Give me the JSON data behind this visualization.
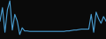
{
  "line_color": "#4a9fd4",
  "background_color": "#0a0a0a",
  "values": [
    40,
    70,
    15,
    65,
    85,
    20,
    55,
    40,
    10,
    25,
    18,
    18,
    17,
    17,
    17,
    17,
    17,
    17,
    17,
    17,
    17,
    17,
    17,
    17,
    17,
    17,
    17,
    18,
    18,
    19,
    20,
    20,
    21,
    22,
    22,
    22,
    22,
    55,
    15,
    60,
    45,
    35,
    50,
    40
  ],
  "linewidth": 0.8
}
